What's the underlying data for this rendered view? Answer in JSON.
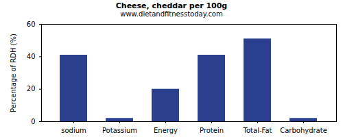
{
  "chart_data": {
    "type": "bar",
    "title": "Cheese, cheddar per 100g",
    "subtitle": "www.dietandfitnesstoday.com",
    "y_label": "Percentage of RDH (%)",
    "categories": [
      "sodium",
      "Potassium",
      "Energy",
      "Protein",
      "Total-Fat",
      "Carbohydrate"
    ],
    "values": [
      41,
      2,
      20,
      41,
      51,
      2
    ],
    "color": "#2a3f8e",
    "ylim": [
      0,
      60
    ],
    "yticks": [
      0,
      20,
      40,
      60
    ],
    "grid": false
  }
}
